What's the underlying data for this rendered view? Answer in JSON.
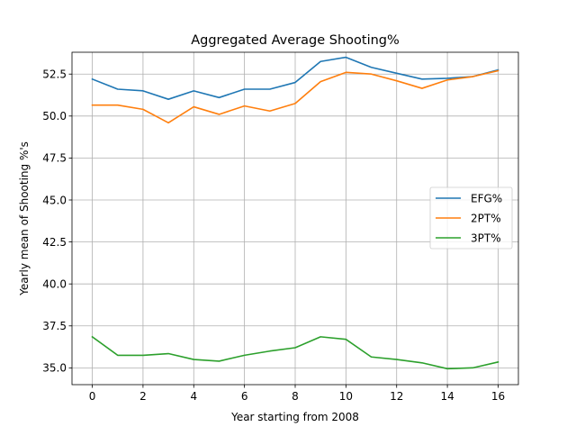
{
  "chart_data": {
    "type": "line",
    "title": "Aggregated Average Shooting%",
    "xlabel": "Year starting from 2008",
    "ylabel": "Yearly mean of Shooting %'s",
    "x": [
      0,
      1,
      2,
      3,
      4,
      5,
      6,
      7,
      8,
      9,
      10,
      11,
      12,
      13,
      14,
      15,
      16
    ],
    "xlim": [
      -0.8,
      16.8
    ],
    "ylim": [
      34.0,
      53.8
    ],
    "xticks": [
      0,
      2,
      4,
      6,
      8,
      10,
      12,
      14,
      16
    ],
    "yticks": [
      35.0,
      37.5,
      40.0,
      42.5,
      45.0,
      47.5,
      50.0,
      52.5
    ],
    "grid": true,
    "legend_position": "center-right",
    "series": [
      {
        "name": "EFG%",
        "color": "#1f77b4",
        "values": [
          52.2,
          51.6,
          51.5,
          51.0,
          51.5,
          51.1,
          51.6,
          51.6,
          52.0,
          53.25,
          53.5,
          52.9,
          52.55,
          52.2,
          52.25,
          52.35,
          52.75
        ]
      },
      {
        "name": "2PT%",
        "color": "#ff7f0e",
        "values": [
          50.65,
          50.65,
          50.4,
          49.6,
          50.55,
          50.1,
          50.6,
          50.3,
          50.75,
          52.05,
          52.6,
          52.5,
          52.1,
          51.65,
          52.15,
          52.35,
          52.7
        ]
      },
      {
        "name": "3PT%",
        "color": "#2ca02c",
        "values": [
          36.85,
          35.75,
          35.75,
          35.85,
          35.5,
          35.4,
          35.75,
          36.0,
          36.2,
          36.85,
          36.7,
          35.65,
          35.5,
          35.3,
          34.95,
          35.0,
          35.35
        ]
      }
    ]
  }
}
